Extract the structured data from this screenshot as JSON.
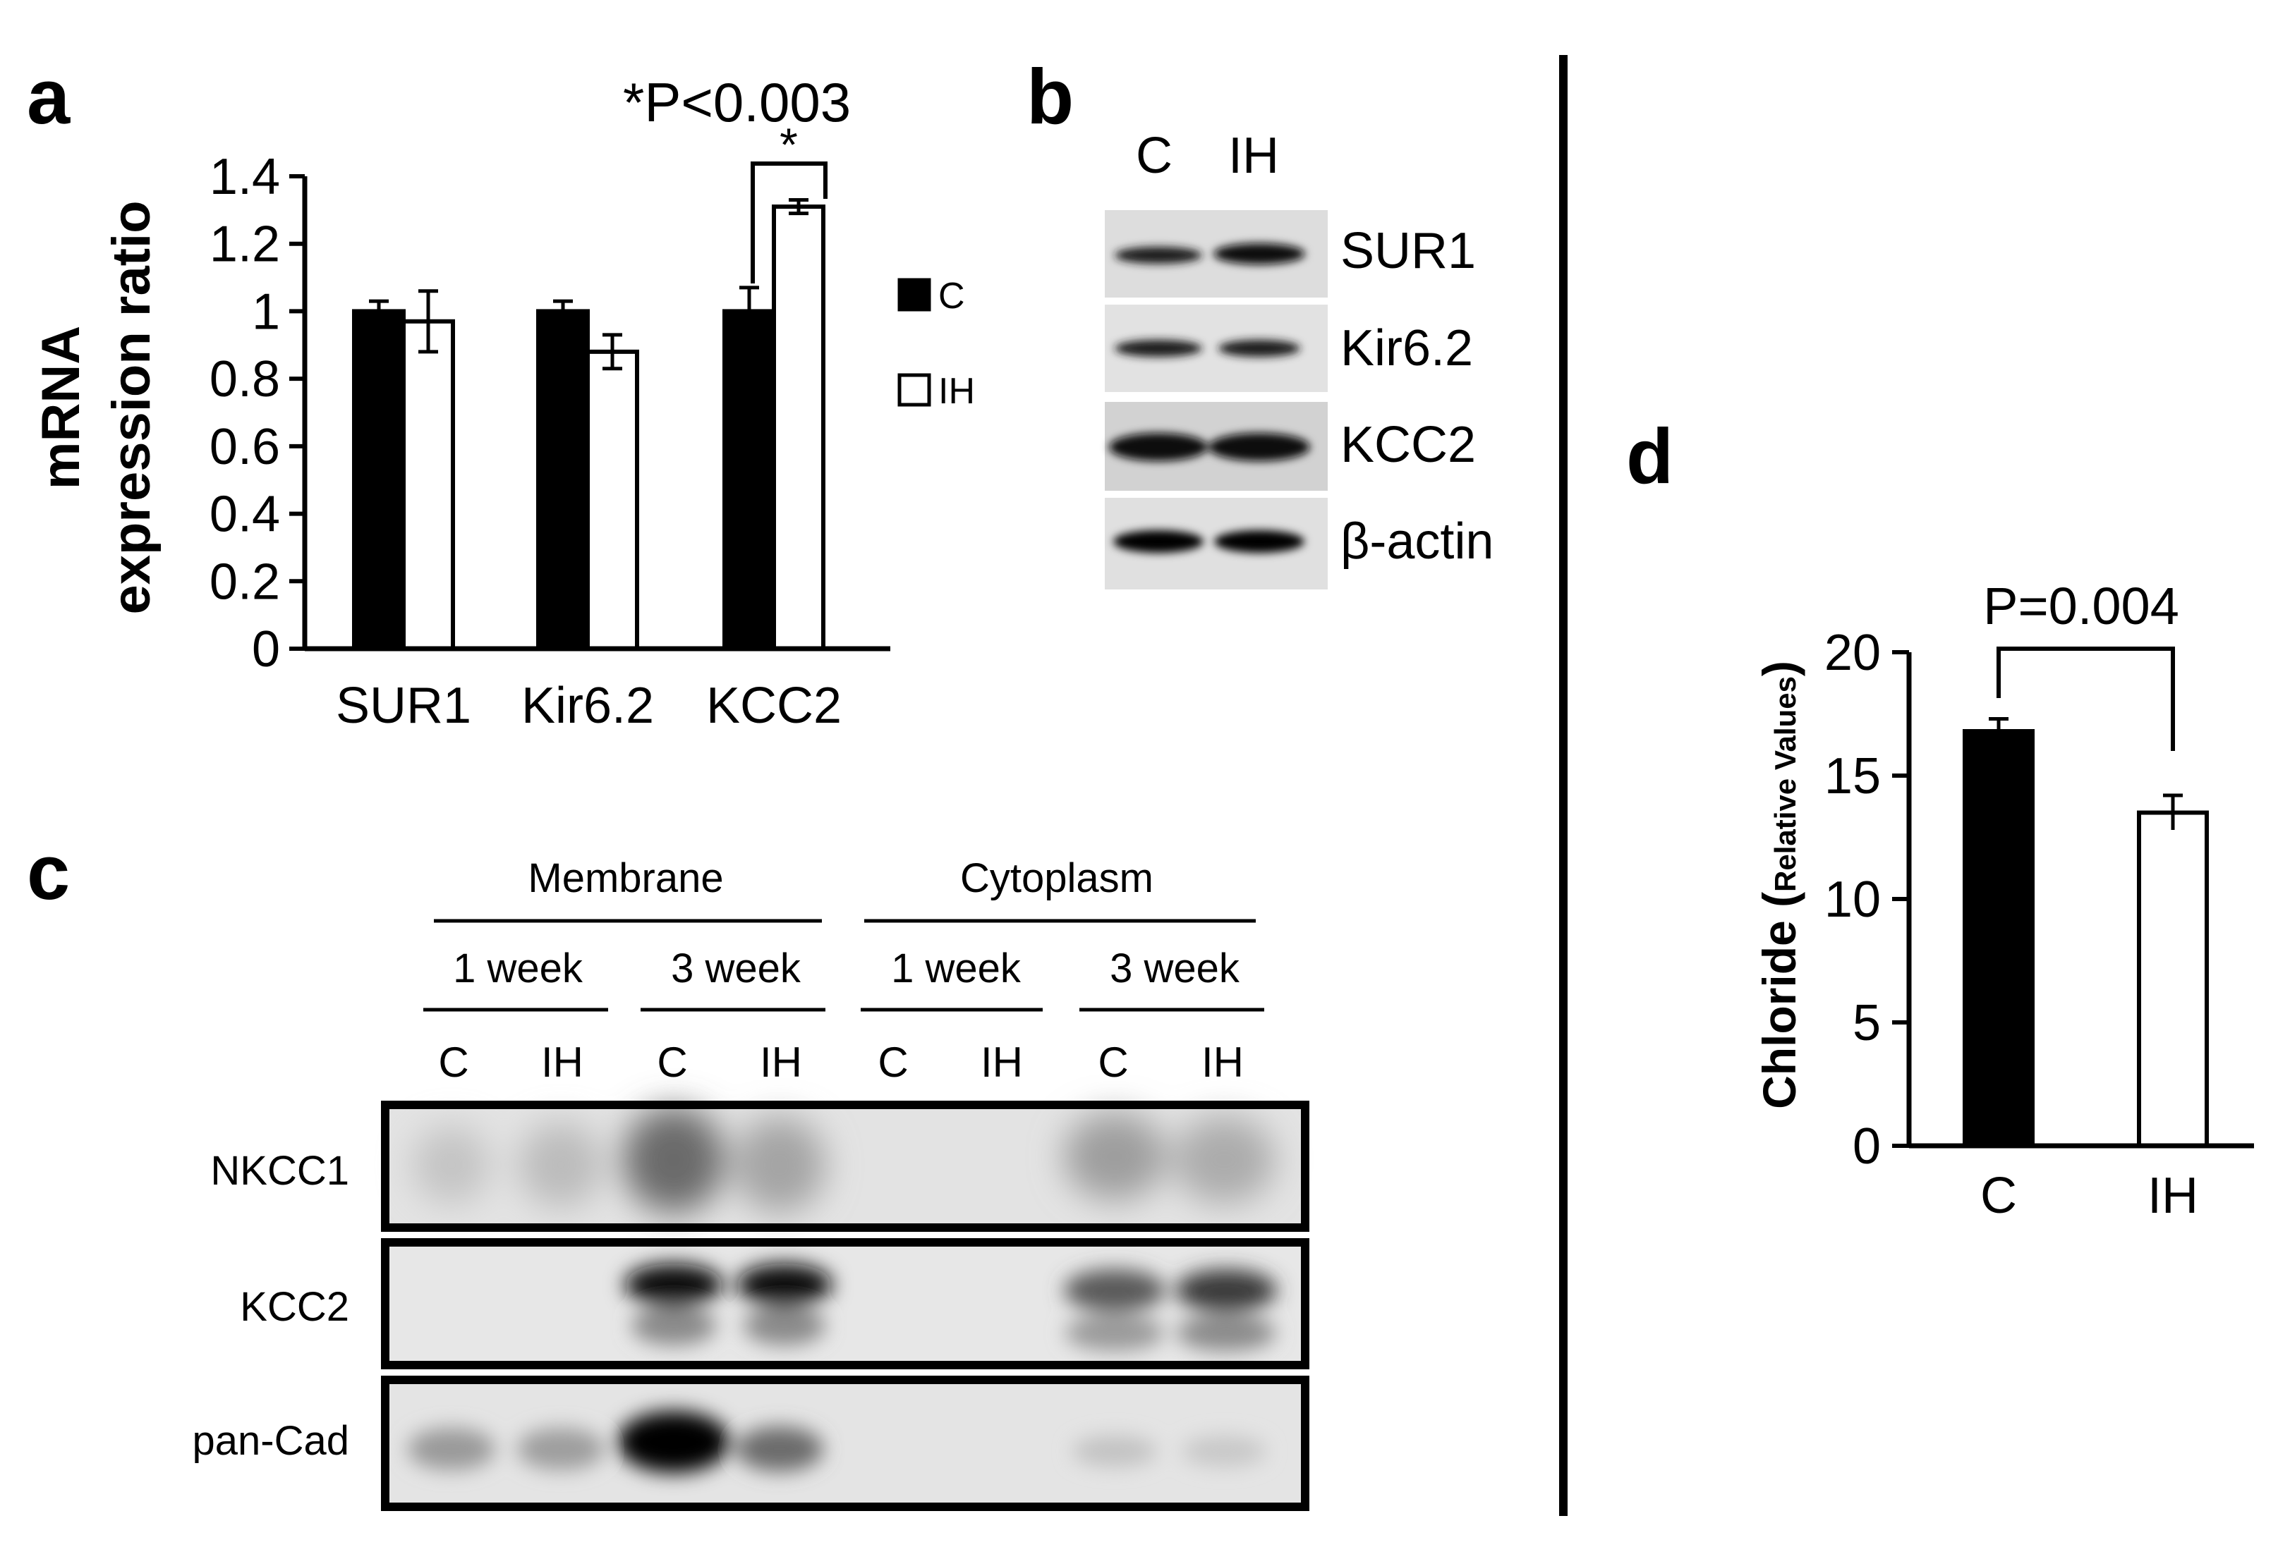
{
  "panels": {
    "a": "a",
    "b": "b",
    "c": "c",
    "d": "d"
  },
  "chart_data": [
    {
      "panel": "a",
      "type": "bar",
      "ylabel_line1": "mRNA",
      "ylabel_line2": "expression ratio",
      "categories": [
        "SUR1",
        "Kir6.2",
        "KCC2"
      ],
      "series": [
        {
          "name": "C",
          "values": [
            1.0,
            1.0,
            1.0
          ],
          "errors": [
            0.03,
            0.03,
            0.07
          ],
          "fill": "#000000"
        },
        {
          "name": "IH",
          "values": [
            0.97,
            0.88,
            1.31
          ],
          "errors": [
            0.09,
            0.05,
            0.02
          ],
          "fill": "#ffffff"
        }
      ],
      "ylim": [
        0,
        1.4
      ],
      "yticks": [
        "0",
        "0.2",
        "0.4",
        "0.6",
        "0.8",
        "1",
        "1.2",
        "1.4"
      ],
      "annotation": "*P<0.003",
      "significance_mark": "*",
      "legend_position": "right"
    },
    {
      "panel": "d",
      "type": "bar",
      "ylabel_main": "Chloride (",
      "ylabel_sub": "Relative Values",
      "ylabel_close": ")",
      "categories": [
        "C",
        "IH"
      ],
      "values": [
        16.8,
        13.5
      ],
      "errors": [
        0.5,
        0.7
      ],
      "fills": [
        "#000000",
        "#ffffff"
      ],
      "ylim": [
        0,
        20
      ],
      "yticks": [
        "0",
        "5",
        "10",
        "15",
        "20"
      ],
      "annotation": "P=0.004"
    }
  ],
  "panel_b": {
    "lanes": [
      "C",
      "IH"
    ],
    "rows": [
      "SUR1",
      "Kir6.2",
      "KCC2",
      "β-actin"
    ]
  },
  "panel_c": {
    "groups": [
      "Membrane",
      "Cytoplasm"
    ],
    "weeks": [
      "1 week",
      "3 week",
      "1 week",
      "3 week"
    ],
    "lanes": [
      "C",
      "IH",
      "C",
      "IH",
      "C",
      "IH",
      "C",
      "IH"
    ],
    "rows": [
      "NKCC1",
      "KCC2",
      "pan-Cad"
    ]
  }
}
